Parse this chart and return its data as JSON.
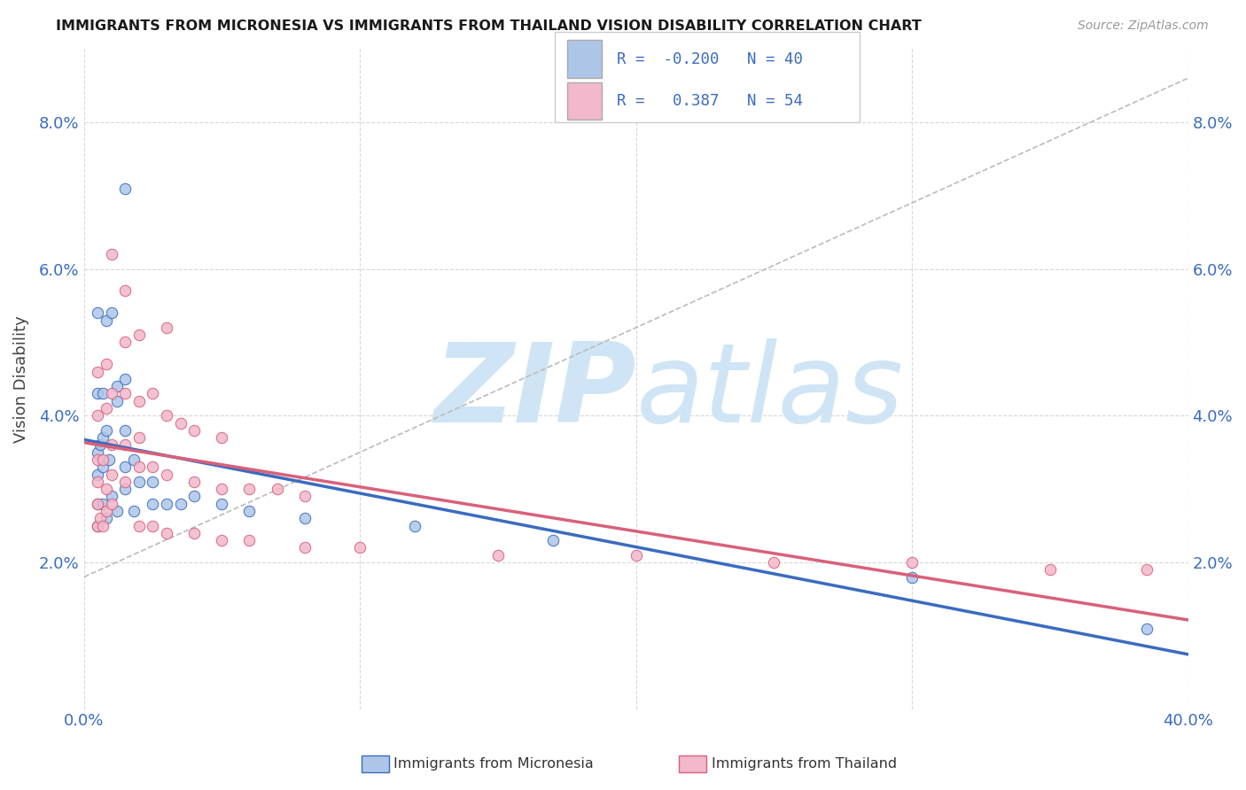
{
  "title": "IMMIGRANTS FROM MICRONESIA VS IMMIGRANTS FROM THAILAND VISION DISABILITY CORRELATION CHART",
  "source_text": "Source: ZipAtlas.com",
  "ylabel": "Vision Disability",
  "xlim": [
    0.0,
    0.4
  ],
  "ylim": [
    0.0,
    0.09
  ],
  "ytick_vals": [
    0.02,
    0.04,
    0.06,
    0.08
  ],
  "ytick_labels": [
    "2.0%",
    "4.0%",
    "6.0%",
    "8.0%"
  ],
  "R_micronesia": -0.2,
  "N_micronesia": 40,
  "R_thailand": 0.387,
  "N_thailand": 54,
  "color_micronesia": "#adc6e8",
  "color_thailand": "#f2b8cb",
  "line_color_micronesia": "#3a6bbf",
  "line_color_thailand": "#d9607a",
  "watermark_color": "#cfe5f5",
  "background_color": "#ffffff",
  "grid_color": "#d8d8d8",
  "micronesia_points": [
    [
      0.005,
      0.054
    ],
    [
      0.008,
      0.053
    ],
    [
      0.01,
      0.054
    ],
    [
      0.015,
      0.071
    ],
    [
      0.005,
      0.043
    ],
    [
      0.007,
      0.043
    ],
    [
      0.012,
      0.044
    ],
    [
      0.015,
      0.045
    ],
    [
      0.005,
      0.035
    ],
    [
      0.006,
      0.036
    ],
    [
      0.007,
      0.037
    ],
    [
      0.008,
      0.038
    ],
    [
      0.012,
      0.042
    ],
    [
      0.015,
      0.038
    ],
    [
      0.005,
      0.032
    ],
    [
      0.007,
      0.033
    ],
    [
      0.009,
      0.034
    ],
    [
      0.015,
      0.033
    ],
    [
      0.018,
      0.034
    ],
    [
      0.005,
      0.028
    ],
    [
      0.007,
      0.028
    ],
    [
      0.01,
      0.029
    ],
    [
      0.015,
      0.03
    ],
    [
      0.02,
      0.031
    ],
    [
      0.025,
      0.031
    ],
    [
      0.005,
      0.025
    ],
    [
      0.008,
      0.026
    ],
    [
      0.012,
      0.027
    ],
    [
      0.018,
      0.027
    ],
    [
      0.025,
      0.028
    ],
    [
      0.03,
      0.028
    ],
    [
      0.035,
      0.028
    ],
    [
      0.04,
      0.029
    ],
    [
      0.05,
      0.028
    ],
    [
      0.06,
      0.027
    ],
    [
      0.08,
      0.026
    ],
    [
      0.12,
      0.025
    ],
    [
      0.17,
      0.023
    ],
    [
      0.3,
      0.018
    ],
    [
      0.385,
      0.011
    ]
  ],
  "thailand_points": [
    [
      0.005,
      0.025
    ],
    [
      0.006,
      0.026
    ],
    [
      0.007,
      0.025
    ],
    [
      0.005,
      0.028
    ],
    [
      0.008,
      0.027
    ],
    [
      0.01,
      0.028
    ],
    [
      0.005,
      0.031
    ],
    [
      0.008,
      0.03
    ],
    [
      0.01,
      0.032
    ],
    [
      0.015,
      0.031
    ],
    [
      0.005,
      0.034
    ],
    [
      0.007,
      0.034
    ],
    [
      0.01,
      0.036
    ],
    [
      0.015,
      0.036
    ],
    [
      0.02,
      0.037
    ],
    [
      0.005,
      0.04
    ],
    [
      0.008,
      0.041
    ],
    [
      0.01,
      0.043
    ],
    [
      0.015,
      0.043
    ],
    [
      0.005,
      0.046
    ],
    [
      0.008,
      0.047
    ],
    [
      0.01,
      0.062
    ],
    [
      0.015,
      0.05
    ],
    [
      0.02,
      0.051
    ],
    [
      0.03,
      0.052
    ],
    [
      0.015,
      0.057
    ],
    [
      0.02,
      0.042
    ],
    [
      0.025,
      0.043
    ],
    [
      0.03,
      0.04
    ],
    [
      0.035,
      0.039
    ],
    [
      0.04,
      0.038
    ],
    [
      0.05,
      0.037
    ],
    [
      0.02,
      0.033
    ],
    [
      0.025,
      0.033
    ],
    [
      0.03,
      0.032
    ],
    [
      0.04,
      0.031
    ],
    [
      0.05,
      0.03
    ],
    [
      0.06,
      0.03
    ],
    [
      0.07,
      0.03
    ],
    [
      0.08,
      0.029
    ],
    [
      0.02,
      0.025
    ],
    [
      0.025,
      0.025
    ],
    [
      0.03,
      0.024
    ],
    [
      0.04,
      0.024
    ],
    [
      0.05,
      0.023
    ],
    [
      0.06,
      0.023
    ],
    [
      0.08,
      0.022
    ],
    [
      0.1,
      0.022
    ],
    [
      0.15,
      0.021
    ],
    [
      0.2,
      0.021
    ],
    [
      0.25,
      0.02
    ],
    [
      0.3,
      0.02
    ],
    [
      0.35,
      0.019
    ],
    [
      0.385,
      0.019
    ]
  ]
}
